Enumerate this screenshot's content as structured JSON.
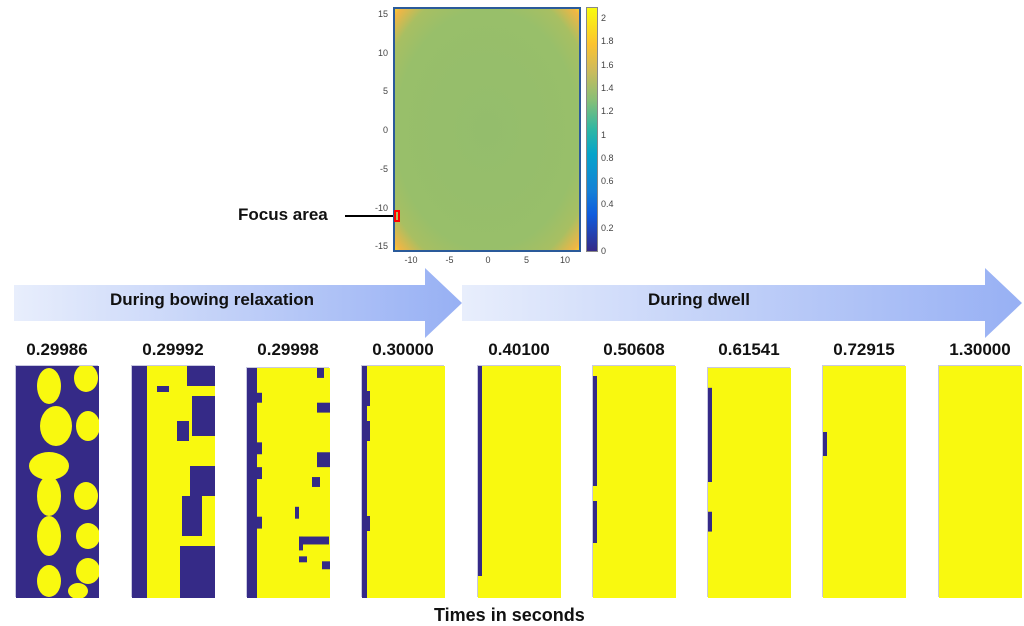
{
  "heatmap": {
    "y_ticks": [
      "15",
      "10",
      "5",
      "0",
      "-5",
      "-10",
      "-15"
    ],
    "x_ticks": [
      "-10",
      "-5",
      "0",
      "5",
      "10"
    ],
    "colorbar_ticks": [
      "2",
      "1.8",
      "1.6",
      "1.4",
      "1.2",
      "1",
      "0.8",
      "0.6",
      "0.4",
      "0.2",
      "0"
    ],
    "colormap": "parula",
    "focus_label": "Focus area",
    "colors": {
      "edge": "#f2b640",
      "interior": "#98bf6a",
      "focus_box": "#ff0000"
    }
  },
  "arrows": {
    "first_label": "During bowing relaxation",
    "second_label": "During dwell",
    "color": "#9db4f5"
  },
  "panels": [
    {
      "time": "0.29986"
    },
    {
      "time": "0.29992"
    },
    {
      "time": "0.29998"
    },
    {
      "time": "0.30000"
    },
    {
      "time": "0.40100"
    },
    {
      "time": "0.50608"
    },
    {
      "time": "0.61541"
    },
    {
      "time": "0.72915"
    },
    {
      "time": "1.30000"
    }
  ],
  "panel_colors": {
    "phase_a": "#352a87",
    "phase_b": "#f9f90f"
  },
  "x_axis_label": "Times in seconds"
}
